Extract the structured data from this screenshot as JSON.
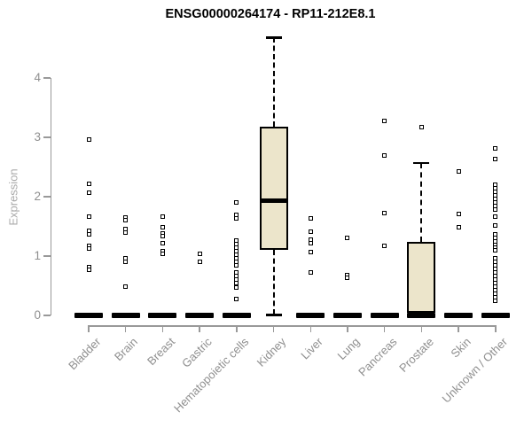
{
  "chart_data": {
    "type": "boxplot",
    "title": "ENSG00000264174 - RP11-212E8.1",
    "ylabel": "Expression",
    "xlabel": "",
    "ylim": [
      0,
      4.7
    ],
    "yticks": [
      0,
      1,
      2,
      3,
      4
    ],
    "grid": false,
    "legend": false,
    "categories": [
      "Bladder",
      "Brain",
      "Breast",
      "Gastric",
      "Hematopoietic cells",
      "Kidney",
      "Liver",
      "Lung",
      "Pancreas",
      "Prostate",
      "Skin",
      "Unknown / Other"
    ],
    "series": [
      {
        "name": "Bladder",
        "q1": 0,
        "median": 0,
        "q3": 0,
        "whisker_low": 0,
        "whisker_high": 0,
        "points": [
          2.97,
          2.22,
          2.07,
          1.66,
          1.43,
          1.37,
          1.17,
          1.12,
          0.81,
          0.77
        ]
      },
      {
        "name": "Brain",
        "q1": 0,
        "median": 0,
        "q3": 0,
        "whisker_low": 0,
        "whisker_high": 0,
        "points": [
          1.65,
          1.6,
          1.46,
          1.39,
          0.96,
          0.91,
          0.49
        ]
      },
      {
        "name": "Breast",
        "q1": 0,
        "median": 0,
        "q3": 0,
        "whisker_low": 0,
        "whisker_high": 0,
        "points": [
          1.67,
          1.48,
          1.38,
          1.33,
          1.22,
          1.08,
          1.03
        ]
      },
      {
        "name": "Gastric",
        "q1": 0,
        "median": 0,
        "q3": 0,
        "whisker_low": 0,
        "whisker_high": 0,
        "points": [
          1.04,
          0.9
        ]
      },
      {
        "name": "Hematopoietic cells",
        "q1": 0,
        "median": 0,
        "q3": 0,
        "whisker_low": 0,
        "whisker_high": 0,
        "points": [
          1.9,
          1.69,
          1.64,
          1.26,
          1.2,
          1.14,
          1.08,
          1.02,
          0.96,
          0.9,
          0.84,
          0.72,
          0.66,
          0.6,
          0.54,
          0.47,
          0.28
        ]
      },
      {
        "name": "Kidney",
        "q1": 1.1,
        "median": 1.93,
        "q3": 3.18,
        "whisker_low": 0.01,
        "whisker_high": 4.68,
        "points": []
      },
      {
        "name": "Liver",
        "q1": 0,
        "median": 0,
        "q3": 0,
        "whisker_low": 0,
        "whisker_high": 0,
        "points": [
          1.64,
          1.41,
          1.27,
          1.21,
          1.07,
          0.73
        ]
      },
      {
        "name": "Lung",
        "q1": 0,
        "median": 0,
        "q3": 0,
        "whisker_low": 0,
        "whisker_high": 0,
        "points": [
          1.3,
          0.68,
          0.63
        ]
      },
      {
        "name": "Pancreas",
        "q1": 0,
        "median": 0,
        "q3": 0,
        "whisker_low": 0,
        "whisker_high": 0,
        "points": [
          3.28,
          2.7,
          1.72,
          1.17
        ]
      },
      {
        "name": "Prostate",
        "q1": 0.05,
        "median": 0,
        "q3": 1.24,
        "whisker_low": 0.05,
        "whisker_high": 2.57,
        "points": [
          3.17
        ]
      },
      {
        "name": "Skin",
        "q1": 0,
        "median": 0,
        "q3": 0,
        "whisker_low": 0,
        "whisker_high": 0,
        "points": [
          2.42,
          1.71,
          1.48
        ]
      },
      {
        "name": "Unknown / Other",
        "q1": 0,
        "median": 0,
        "q3": 0,
        "whisker_low": 0,
        "whisker_high": 0,
        "points": [
          2.82,
          2.64,
          2.2,
          2.14,
          2.08,
          2.02,
          1.96,
          1.9,
          1.84,
          1.79,
          1.67,
          1.51,
          1.37,
          1.31,
          1.25,
          1.19,
          1.14,
          1.09,
          0.97,
          0.91,
          0.85,
          0.79,
          0.73,
          0.67,
          0.61,
          0.55,
          0.49,
          0.43,
          0.37,
          0.31,
          0.25
        ]
      }
    ],
    "colors": {
      "background": "#ffffff",
      "title_color": "#000000",
      "box_fill": "#ECE5CB",
      "box_border": "#000000",
      "median": "#000000",
      "whisker": "#000000",
      "point_fill": "#ffffff",
      "point_border": "#000000",
      "axis": "#999999",
      "tick_label": "#8f8f8f",
      "ylabel_color": "#a9a9a9"
    }
  }
}
